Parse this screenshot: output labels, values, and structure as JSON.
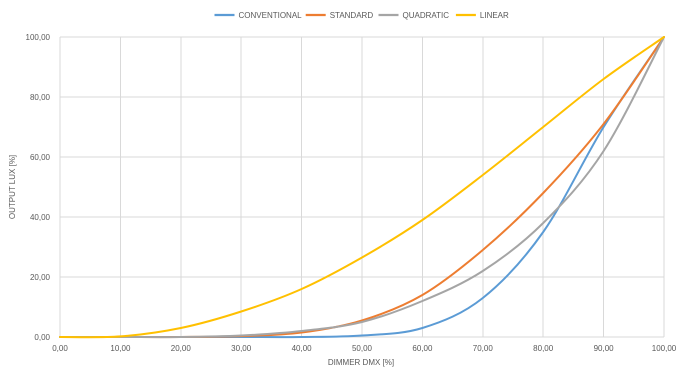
{
  "chart_data": {
    "type": "line",
    "title": "",
    "xlabel": "DIMMER DMX [%]",
    "ylabel": "OUTPUT LUX [%]",
    "xlim": [
      0,
      100
    ],
    "ylim": [
      0,
      100
    ],
    "x_ticks": [
      "0,00",
      "10,00",
      "20,00",
      "30,00",
      "40,00",
      "50,00",
      "60,00",
      "70,00",
      "80,00",
      "90,00",
      "100,00"
    ],
    "y_ticks": [
      "0,00",
      "20,00",
      "40,00",
      "60,00",
      "80,00",
      "100,00"
    ],
    "grid": true,
    "legend_position": "top-center",
    "x": [
      0,
      10,
      20,
      30,
      40,
      50,
      60,
      70,
      80,
      90,
      100
    ],
    "series": [
      {
        "name": "CONVENTIONAL",
        "color": "#5b9bd5",
        "values": [
          0,
          0,
          0,
          0,
          0,
          0.5,
          3,
          13,
          35,
          70,
          100
        ]
      },
      {
        "name": "STANDARD",
        "color": "#ed7d31",
        "values": [
          0,
          0,
          0,
          0.3,
          1.5,
          5.5,
          14,
          29,
          48,
          71,
          100
        ]
      },
      {
        "name": "QUADRATIC",
        "color": "#a5a5a5",
        "values": [
          0,
          0,
          0,
          0.5,
          2,
          5,
          12,
          22,
          38,
          62,
          100
        ]
      },
      {
        "name": "LINEAR",
        "color": "#ffc000",
        "values": [
          0,
          0.2,
          3,
          8.5,
          16,
          26.5,
          39,
          54,
          70,
          86,
          100
        ]
      }
    ]
  }
}
